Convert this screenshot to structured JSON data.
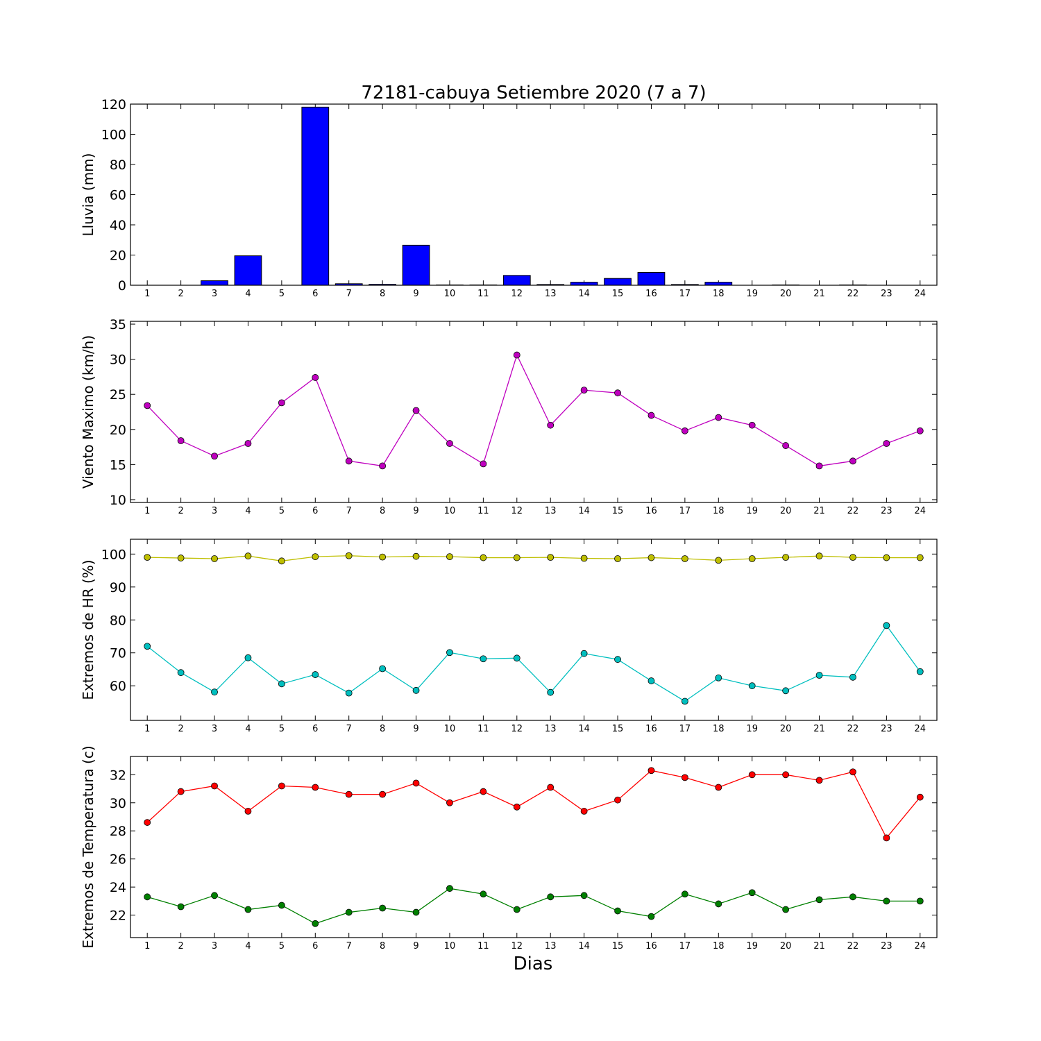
{
  "figure": {
    "title": "72181-cabuya Setiembre 2020  (7 a 7)",
    "xlabel": "Dias"
  },
  "chart_data": [
    {
      "type": "bar",
      "ylabel": "Lluvia (mm)",
      "ylim": [
        0,
        120
      ],
      "yticks": [
        0,
        20,
        40,
        60,
        80,
        100,
        120
      ],
      "categories": [
        1,
        2,
        3,
        4,
        5,
        6,
        7,
        8,
        9,
        10,
        11,
        12,
        13,
        14,
        15,
        16,
        17,
        18,
        19,
        20,
        21,
        22,
        23,
        24
      ],
      "series": [
        {
          "color": "#0000ff",
          "values": [
            0,
            0,
            3,
            19.5,
            0,
            118,
            1,
            0.6,
            26.5,
            0.2,
            0.2,
            6.5,
            0.5,
            2,
            4.5,
            8.5,
            0.5,
            2,
            0,
            0.2,
            0,
            0.2,
            0,
            0
          ]
        }
      ]
    },
    {
      "type": "line",
      "ylabel": "Viento Maximo (km/h)",
      "ylim": [
        9.6,
        35.4
      ],
      "yticks": [
        10,
        15,
        20,
        25,
        30,
        35
      ],
      "x": [
        1,
        2,
        3,
        4,
        5,
        6,
        7,
        8,
        9,
        10,
        11,
        12,
        13,
        14,
        15,
        16,
        17,
        18,
        19,
        20,
        21,
        22,
        23,
        24
      ],
      "series": [
        {
          "color": "#bf00bf",
          "values": [
            23.4,
            18.4,
            16.2,
            18.0,
            23.8,
            27.4,
            15.5,
            14.8,
            22.7,
            18.0,
            15.1,
            30.6,
            20.6,
            25.6,
            25.2,
            22.0,
            19.8,
            21.7,
            20.6,
            17.7,
            14.8,
            15.5,
            18.0,
            19.8
          ]
        }
      ]
    },
    {
      "type": "line",
      "ylabel": "Extremos de HR (%)",
      "ylim": [
        49.5,
        104.5
      ],
      "yticks": [
        60,
        70,
        80,
        90,
        100
      ],
      "x": [
        1,
        2,
        3,
        4,
        5,
        6,
        7,
        8,
        9,
        10,
        11,
        12,
        13,
        14,
        15,
        16,
        17,
        18,
        19,
        20,
        21,
        22,
        23,
        24
      ],
      "series": [
        {
          "color": "#bfbf00",
          "values": [
            99.0,
            98.8,
            98.6,
            99.4,
            97.9,
            99.2,
            99.5,
            99.1,
            99.3,
            99.2,
            98.9,
            98.9,
            99.0,
            98.7,
            98.6,
            98.9,
            98.6,
            98.1,
            98.6,
            99.0,
            99.4,
            99.0,
            98.9,
            98.9
          ]
        },
        {
          "color": "#00bfbf",
          "values": [
            72.0,
            64.0,
            58.1,
            68.5,
            60.6,
            63.4,
            57.8,
            65.2,
            58.6,
            70.1,
            68.2,
            68.4,
            58.0,
            69.8,
            68.0,
            61.5,
            55.3,
            62.4,
            60.0,
            58.5,
            63.2,
            62.6,
            78.3,
            64.3
          ]
        }
      ]
    },
    {
      "type": "line",
      "ylabel": "Extremos de Temperatura (c)",
      "ylim": [
        20.4,
        33.3
      ],
      "yticks": [
        22,
        24,
        26,
        28,
        30,
        32
      ],
      "x": [
        1,
        2,
        3,
        4,
        5,
        6,
        7,
        8,
        9,
        10,
        11,
        12,
        13,
        14,
        15,
        16,
        17,
        18,
        19,
        20,
        21,
        22,
        23,
        24
      ],
      "series": [
        {
          "color": "#ff0000",
          "values": [
            28.6,
            30.8,
            31.2,
            29.4,
            31.2,
            31.1,
            30.6,
            30.6,
            31.4,
            30.0,
            30.8,
            29.7,
            31.1,
            29.4,
            30.2,
            32.3,
            31.8,
            31.1,
            32.0,
            32.0,
            31.6,
            32.2,
            27.5,
            30.4
          ]
        },
        {
          "color": "#008000",
          "values": [
            23.3,
            22.6,
            23.4,
            22.4,
            22.7,
            21.4,
            22.2,
            22.5,
            22.2,
            23.9,
            23.5,
            22.4,
            23.3,
            23.4,
            22.3,
            21.9,
            23.5,
            22.8,
            23.6,
            22.4,
            23.1,
            23.3,
            23.0,
            23.0
          ]
        }
      ]
    }
  ]
}
